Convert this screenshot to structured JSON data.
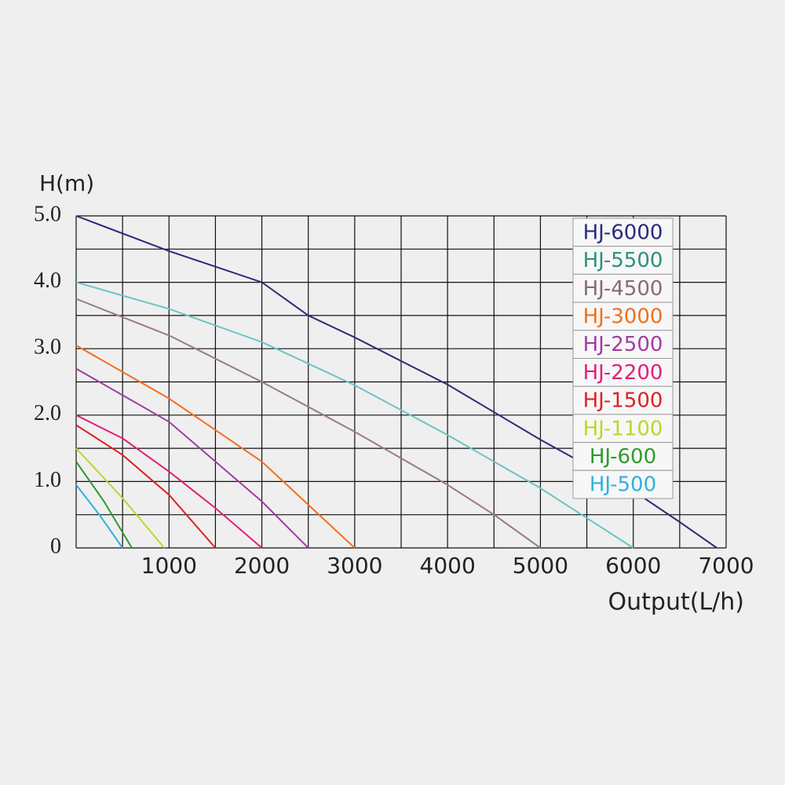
{
  "chart_data": {
    "type": "line",
    "y_label": "H(m)",
    "x_label": "Output(L/h)",
    "xlim": [
      0,
      7000
    ],
    "ylim": [
      0,
      5
    ],
    "xticks": [
      1000,
      2000,
      3000,
      4000,
      5000,
      6000,
      7000
    ],
    "yticks": [
      0,
      {
        "value": 1,
        "label": "1.0"
      },
      {
        "value": 2,
        "label": "2.0"
      },
      {
        "value": 3,
        "label": "3.0"
      },
      {
        "value": 4,
        "label": "4.0"
      },
      {
        "value": 5,
        "label": "5.0"
      }
    ],
    "xgrid": [
      0,
      500,
      1000,
      1500,
      2000,
      2500,
      3000,
      3500,
      4000,
      4500,
      5000,
      5500,
      6000,
      6500,
      7000
    ],
    "ygrid": [
      0,
      0.5,
      1,
      1.5,
      2,
      2.5,
      3,
      3.5,
      4,
      4.5,
      5
    ],
    "grid": true,
    "legend": "top-right",
    "series": [
      {
        "name": "HJ-6000",
        "color": "#2b2b7a",
        "x": [
          0,
          1000,
          2000,
          2500,
          3000,
          4000,
          5000,
          6000,
          6500,
          6900
        ],
        "values": [
          5.0,
          4.47,
          4.0,
          3.5,
          3.17,
          2.46,
          1.63,
          0.86,
          0.39,
          0
        ]
      },
      {
        "name": "HJ-5500",
        "color": "#2f8f7f",
        "linecolor": "#6cc4c4",
        "x": [
          0,
          1000,
          2000,
          3000,
          4000,
          5000,
          5500,
          6000
        ],
        "values": [
          4.0,
          3.6,
          3.1,
          2.45,
          1.7,
          0.9,
          0.45,
          0
        ]
      },
      {
        "name": "HJ-4500",
        "color": "#8a6a72",
        "linecolor": "#9a7a8a",
        "x": [
          0,
          1000,
          2000,
          3000,
          4000,
          4500,
          5000
        ],
        "values": [
          3.75,
          3.2,
          2.5,
          1.75,
          0.95,
          0.5,
          0
        ]
      },
      {
        "name": "HJ-3000",
        "color": "#f07020",
        "x": [
          0,
          1000,
          2000,
          2500,
          3000
        ],
        "values": [
          3.05,
          2.25,
          1.3,
          0.65,
          0
        ]
      },
      {
        "name": "HJ-2500",
        "color": "#a03ca0",
        "x": [
          0,
          1000,
          1500,
          2000,
          2500
        ],
        "values": [
          2.7,
          1.9,
          1.3,
          0.7,
          0
        ]
      },
      {
        "name": "HJ-2200",
        "color": "#e0207a",
        "x": [
          0,
          500,
          1000,
          1500,
          2000
        ],
        "values": [
          2.0,
          1.65,
          1.15,
          0.6,
          0
        ]
      },
      {
        "name": "HJ-1500",
        "color": "#e02020",
        "x": [
          0,
          500,
          1000,
          1500
        ],
        "values": [
          1.85,
          1.4,
          0.8,
          0
        ]
      },
      {
        "name": "HJ-1100",
        "color": "#b8d830",
        "x": [
          0,
          500,
          950
        ],
        "values": [
          1.5,
          0.75,
          0
        ]
      },
      {
        "name": "HJ-600",
        "color": "#2e9a2e",
        "x": [
          0,
          300,
          600
        ],
        "values": [
          1.3,
          0.7,
          0
        ]
      },
      {
        "name": "HJ-500",
        "color": "#30b0e0",
        "x": [
          0,
          250,
          500
        ],
        "values": [
          0.95,
          0.5,
          0
        ]
      }
    ]
  }
}
